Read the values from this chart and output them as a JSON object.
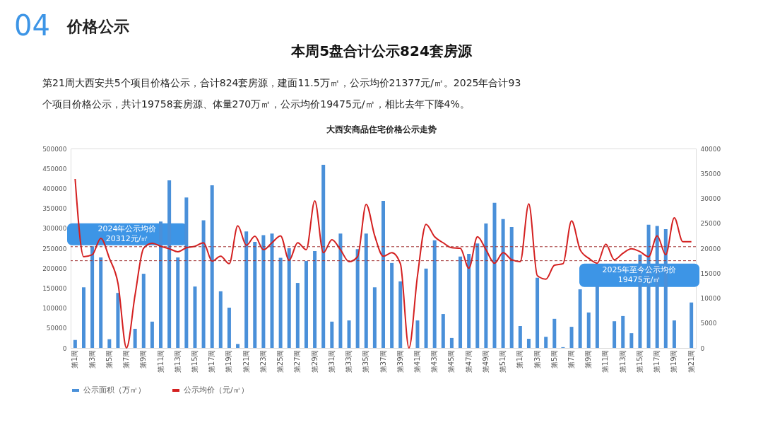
{
  "chart_data": {
    "type": "bar",
    "title": "大西安商品住宅价格公示走势",
    "annotations": [
      "04",
      "价格公示",
      "本周5盘合计公示824套房源",
      "第21周大西安共5个项目价格公示，合计824套房源，建面11.5万㎡，公示均价21377元/㎡。2025年合计93个项目价格公示，共计19758套房源、体量270万㎡，公示均价19475元/㎡，相比去年下降4%。"
    ],
    "categories": [
      "第1周",
      null,
      "第3周",
      null,
      "第5周",
      null,
      "第7周",
      null,
      "第9周",
      null,
      "第11周",
      null,
      "第13周",
      null,
      "第15周",
      null,
      "第17周",
      null,
      "第19周",
      null,
      "第21周",
      null,
      "第23周",
      null,
      "第25周",
      null,
      "第27周",
      null,
      "第29周",
      null,
      "第31周",
      null,
      "第33周",
      null,
      "第35周",
      null,
      "第37周",
      null,
      "第39周",
      null,
      "第41周",
      null,
      "第43周",
      null,
      "第45周",
      null,
      "第47周",
      null,
      "第49周",
      null,
      "第51周",
      null,
      "第1周",
      null,
      "第3周",
      null,
      "第5周",
      null,
      "第7周",
      null,
      "第9周",
      null,
      "第11周",
      null,
      "第13周",
      null,
      "第15周",
      null,
      "第17周",
      null,
      "第19周",
      null,
      "第21周"
    ],
    "series": [
      {
        "name": "公示面积（万㎡）",
        "color": "#4a90d9",
        "values": [
          20000,
          152000,
          255000,
          227000,
          22000,
          138000,
          0,
          48000,
          186000,
          66000,
          317000,
          420000,
          227000,
          377000,
          154000,
          320000,
          408000,
          142000,
          101000,
          10000,
          292000,
          266000,
          283000,
          287000,
          226000,
          250000,
          163000,
          218000,
          243000,
          459000,
          66000,
          287000,
          69000,
          248000,
          287000,
          152000,
          369000,
          213000,
          167000,
          0,
          69000,
          199000,
          270000,
          85000,
          25000,
          229000,
          236000,
          262000,
          312000,
          364000,
          323000,
          303000,
          55000,
          23000,
          176000,
          28000,
          73000,
          2000,
          53000,
          147000,
          89000,
          155000,
          null,
          67000,
          80000,
          37000,
          234000,
          309000,
          306000,
          298000,
          69000,
          null,
          114000
        ]
      },
      {
        "name": "公示均价（元/㎡）",
        "type": "line",
        "axis": "y2",
        "color": "#d42020",
        "values": [
          33900,
          18300,
          18700,
          22000,
          18000,
          13000,
          0,
          10600,
          20000,
          21000,
          20400,
          19900,
          19300,
          20100,
          20400,
          21100,
          17400,
          18400,
          16900,
          24500,
          20600,
          22400,
          19700,
          21100,
          22500,
          17600,
          21100,
          19700,
          29500,
          19100,
          21700,
          19700,
          17300,
          18300,
          28800,
          22500,
          18400,
          19100,
          16900,
          0,
          14500,
          24800,
          22300,
          21100,
          20100,
          20000,
          16000,
          22300,
          19700,
          17000,
          19100,
          17700,
          17300,
          28900,
          14500,
          13800,
          16600,
          16900,
          25500,
          19700,
          18000,
          17000,
          20800,
          17700,
          19000,
          19900,
          19300,
          18300,
          22500,
          18700,
          26100,
          21300,
          21300
        ]
      }
    ],
    "ylim": [
      0,
      500000
    ],
    "yticks": [
      0,
      50000,
      100000,
      150000,
      200000,
      250000,
      300000,
      350000,
      400000,
      450000,
      500000
    ],
    "y2lim": [
      0,
      40000
    ],
    "y2ticks": [
      0,
      5000,
      10000,
      15000,
      20000,
      25000,
      30000,
      35000,
      40000
    ],
    "ref_lines": [
      {
        "axis": "y2",
        "value": 20312,
        "label": "2024年公示均价\n20312元/㎡",
        "color": "#a03030",
        "line_style": "dashed"
      },
      {
        "axis": "y2",
        "value": 17500,
        "label": "2025年至今公示均价\n19475元/㎡",
        "color": "#a03030",
        "line_style": "dashed"
      }
    ],
    "legend": "bottom",
    "grid": false
  }
}
